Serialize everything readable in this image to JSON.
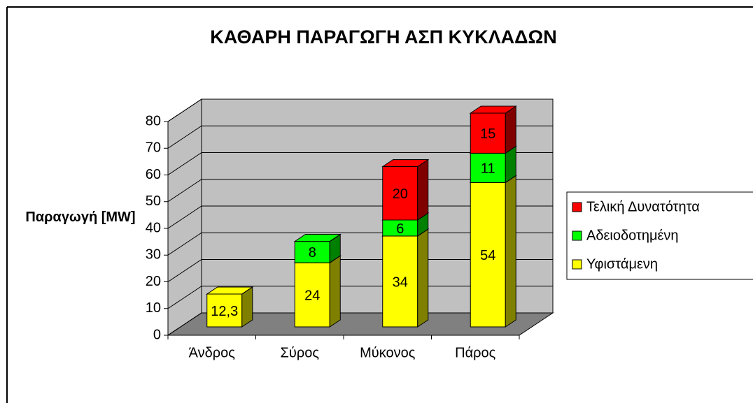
{
  "chart_data": {
    "type": "bar3d_stacked",
    "title": "ΚΑΘΑΡΗ ΠΑΡΑΓΩΓΗ ΑΣΠ ΚΥΚΛΑΔΩΝ",
    "ylabel": "Παραγωγή [MW]",
    "categories": [
      "Άνδρος",
      "Σύρος",
      "Μύκονος",
      "Πάρος"
    ],
    "series": [
      {
        "name": "Υφιστάμενη",
        "color": "#ffff00",
        "values": [
          12.3,
          24,
          34,
          54
        ],
        "value_labels": [
          "12,3",
          "24",
          "34",
          "54"
        ]
      },
      {
        "name": "Αδειοδοτημένη",
        "color": "#00ff00",
        "values": [
          null,
          8,
          6,
          11
        ]
      },
      {
        "name": "Τελική Δυνατότητα",
        "color": "#ff0000",
        "values": [
          null,
          null,
          20,
          15
        ]
      }
    ],
    "ylim": [
      0,
      80
    ],
    "yticks": [
      0,
      10,
      20,
      30,
      40,
      50,
      60,
      70,
      80
    ],
    "grid": true,
    "legend": "right"
  }
}
